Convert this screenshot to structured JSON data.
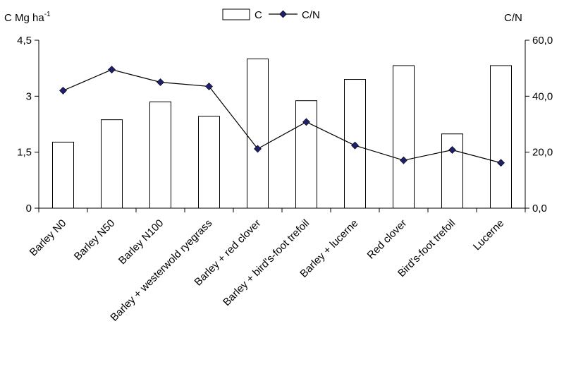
{
  "chart_data": {
    "type": "bar",
    "categories": [
      "Barley N0",
      "Barley N50",
      "Barley N100",
      "Barley + westerwold ryegrass",
      "Barley + red clover",
      "Barley + bird's-foot trefoil",
      "Barley + lucerne",
      "Red clover",
      "Bird's-foot trefoil",
      "Lucerne"
    ],
    "series": [
      {
        "name": "C",
        "type": "bar",
        "axis": "left",
        "values": [
          1.77,
          2.37,
          2.85,
          2.46,
          4.0,
          2.88,
          3.45,
          3.82,
          1.99,
          3.82
        ]
      },
      {
        "name": "C/N",
        "type": "line",
        "axis": "right",
        "values": [
          42.0,
          49.5,
          45.0,
          43.5,
          21.2,
          30.8,
          22.4,
          17.1,
          20.8,
          16.2
        ]
      }
    ],
    "ylabel_left": "C Mg ha",
    "ylabel_left_sup": "-1",
    "ylabel_right": "C/N",
    "ylim_left": [
      0,
      4.5
    ],
    "ylim_right": [
      0,
      60
    ],
    "yticks_left": [
      "0",
      "1,5",
      "3",
      "4,5"
    ],
    "yticks_right": [
      "0,0",
      "20,0",
      "40,0",
      "60,0"
    ],
    "legend_position": "top-center",
    "grid": false,
    "colors": {
      "bar_fill": "#ffffff",
      "bar_stroke": "#000000",
      "line": "#000000",
      "marker": "#1f1f6e"
    }
  }
}
